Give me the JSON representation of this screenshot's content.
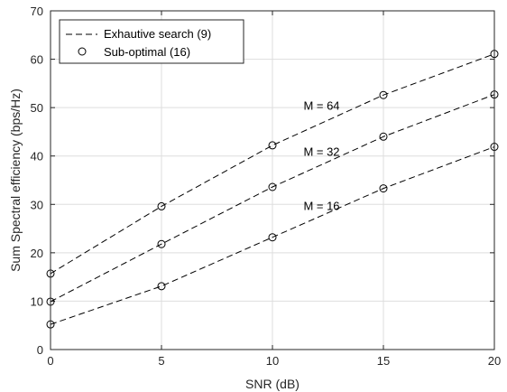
{
  "chart_data": {
    "type": "line",
    "title": "",
    "xlabel": "SNR (dB)",
    "ylabel": "Sum Spectral efficiency (bps/Hz)",
    "xlim": [
      0,
      20
    ],
    "ylim": [
      0,
      70
    ],
    "xticks": [
      0,
      5,
      10,
      15,
      20
    ],
    "yticks": [
      0,
      10,
      20,
      30,
      40,
      50,
      60,
      70
    ],
    "grid": true,
    "legend_position": "top-left",
    "x": [
      0,
      5,
      10,
      15,
      20
    ],
    "series": [
      {
        "name": "Exhautive search (9)",
        "style": "dashed",
        "curve": "M = 64",
        "values": [
          15.7,
          29.6,
          42.2,
          52.6,
          61.1
        ]
      },
      {
        "name": "Sub-optimal (16)",
        "style": "circles",
        "curve": "M = 64",
        "values": [
          15.7,
          29.6,
          42.2,
          52.6,
          61.1
        ]
      },
      {
        "name": "Exhautive search (9)",
        "style": "dashed",
        "curve": "M = 32",
        "values": [
          9.9,
          21.8,
          33.6,
          44.0,
          52.7
        ]
      },
      {
        "name": "Sub-optimal (16)",
        "style": "circles",
        "curve": "M = 32",
        "values": [
          9.9,
          21.8,
          33.6,
          44.0,
          52.7
        ]
      },
      {
        "name": "Exhautive search (9)",
        "style": "dashed",
        "curve": "M = 16",
        "values": [
          5.2,
          13.1,
          23.2,
          33.3,
          41.9
        ]
      },
      {
        "name": "Sub-optimal (16)",
        "style": "circles",
        "curve": "M = 16",
        "values": [
          5.2,
          13.1,
          23.2,
          33.3,
          41.9
        ]
      }
    ],
    "legend": [
      {
        "label": "Exhautive search (9)",
        "marker": "dashed-line"
      },
      {
        "label": "Sub-optimal (16)",
        "marker": "circle"
      }
    ],
    "annotations": [
      {
        "text": "M = 64",
        "x": 11.4,
        "y": 49.6
      },
      {
        "text": "M = 32",
        "x": 11.4,
        "y": 40.0
      },
      {
        "text": "M = 16",
        "x": 11.4,
        "y": 28.8
      }
    ],
    "colors": {
      "line": "#000000",
      "grid": "#dedede",
      "axis": "#262626"
    }
  }
}
